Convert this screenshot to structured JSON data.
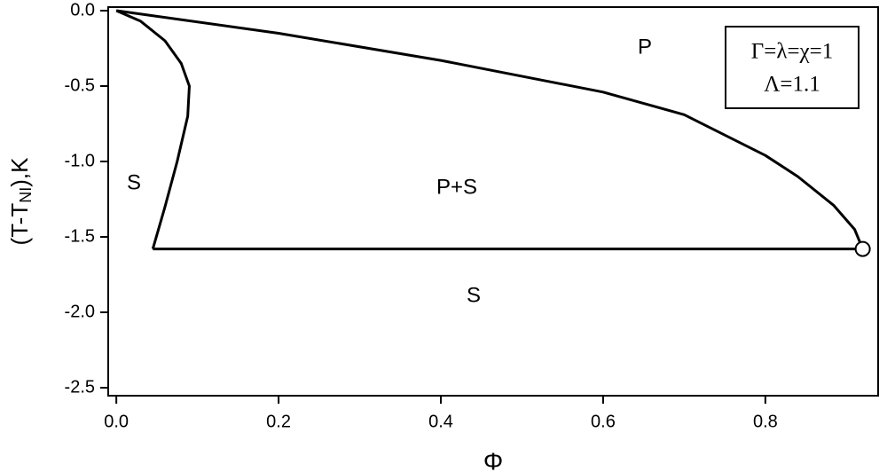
{
  "chart_data": {
    "type": "line",
    "xlabel": "Φ",
    "ylabel": "(T-T",
    "ylabel_sub": "NI",
    "ylabel_end": "),K",
    "xlim": [
      -0.01,
      0.939
    ],
    "ylim": [
      -2.553,
      0.0235
    ],
    "xticks": [
      {
        "value": 0,
        "label": "0.0"
      },
      0.2,
      0.4,
      0.6,
      0.8
    ],
    "yticks": [
      {
        "value": 0,
        "label": "0.0"
      },
      -0.5,
      {
        "value": -1,
        "label": "-1.0"
      },
      -1.5,
      {
        "value": -2,
        "label": "-2.0"
      },
      -2.5
    ],
    "series": [
      {
        "color": "#000000",
        "x": [
          0,
          0.03,
          0.06,
          0.08,
          0.09,
          0.088,
          0.075,
          0.06,
          0.045
        ],
        "values": [
          0,
          -0.07,
          -0.2,
          -0.35,
          -0.5,
          -0.7,
          -1.0,
          -1.3,
          -1.58
        ]
      },
      {
        "color": "#000000",
        "x": [
          0,
          0.2,
          0.4,
          0.6,
          0.7,
          0.8,
          0.84,
          0.884,
          0.91,
          0.92
        ],
        "values": [
          0,
          -0.15,
          -0.33,
          -0.54,
          -0.69,
          -0.96,
          -1.1,
          -1.29,
          -1.45,
          -1.58
        ]
      },
      {
        "color": "#000000",
        "x": [
          0.045,
          0.92
        ],
        "values": [
          -1.58,
          -1.58
        ]
      }
    ],
    "marker": {
      "x": 0.92,
      "y": -1.58
    },
    "annotations": [
      "P",
      "P+S",
      "S",
      "S"
    ],
    "legend_lines": [
      "Γ=λ=χ=1",
      "Λ=1.1"
    ]
  }
}
